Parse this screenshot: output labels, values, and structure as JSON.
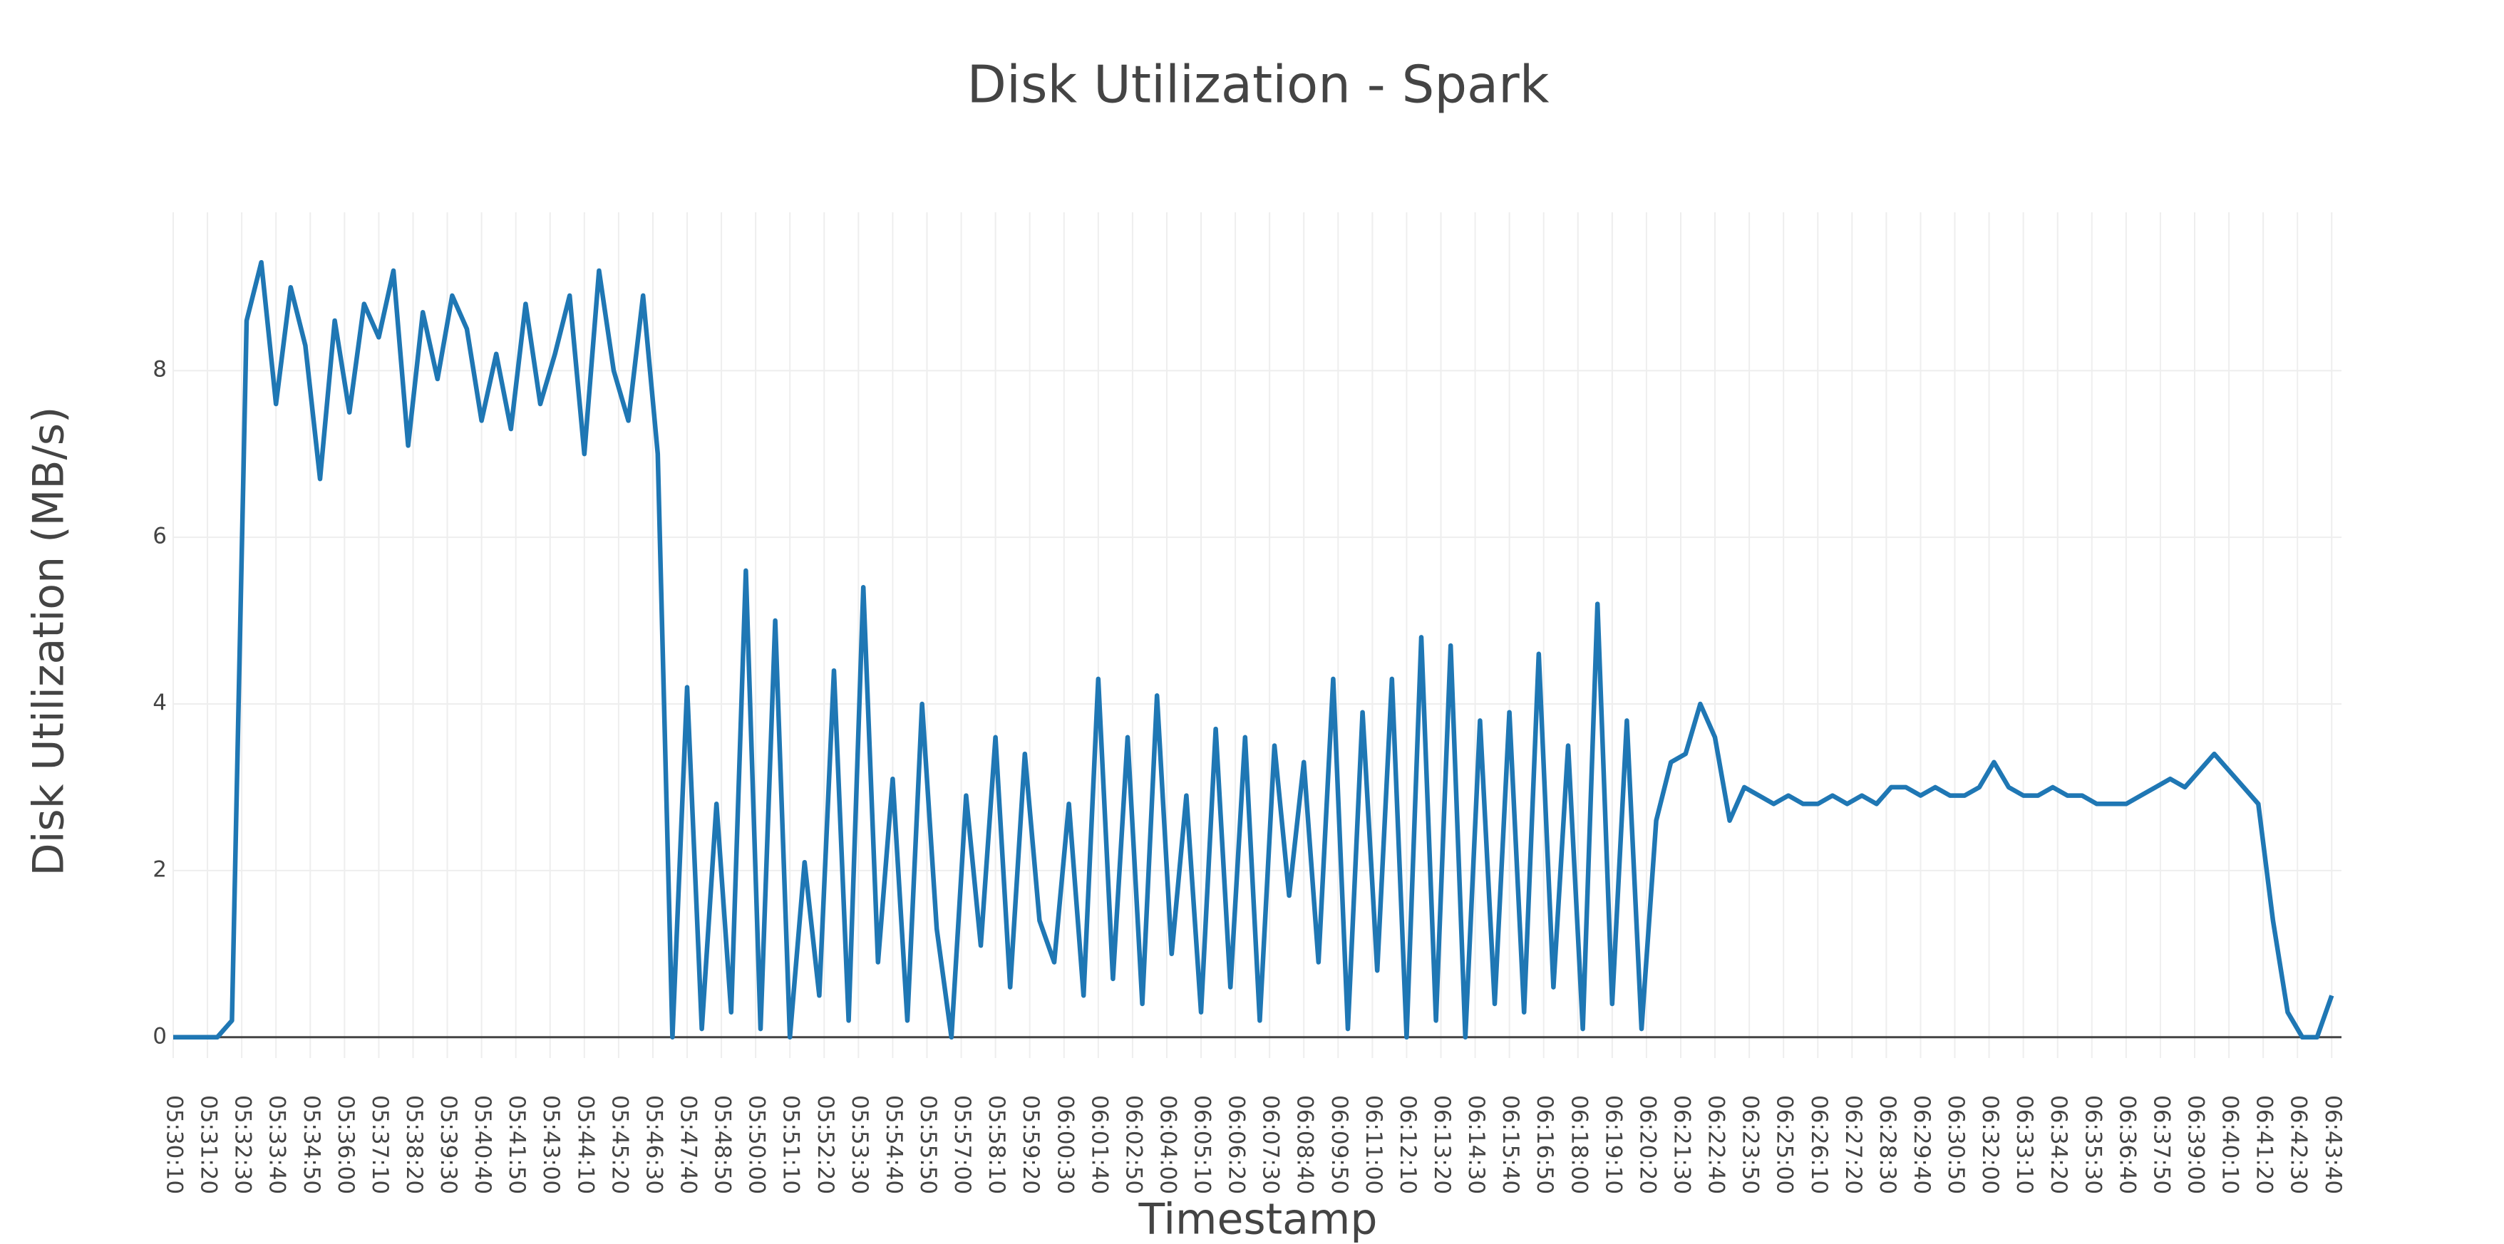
{
  "chart_data": {
    "type": "line",
    "title": "Disk Utilization - Spark",
    "x_label": "Timestamp",
    "y_label": "Disk Utilization (MB/s)",
    "color": "#1f77b4",
    "grid": true,
    "xlim": [
      "05:30:10",
      "06:44:00"
    ],
    "ylim": [
      -0.25,
      9.9
    ],
    "yticks": [
      0,
      2,
      4,
      6,
      8
    ],
    "xticks": [
      "05:30:10",
      "05:31:20",
      "05:32:30",
      "05:33:40",
      "05:34:50",
      "05:36:00",
      "05:37:10",
      "05:38:20",
      "05:39:30",
      "05:40:40",
      "05:41:50",
      "05:43:00",
      "05:44:10",
      "05:45:20",
      "05:46:30",
      "05:47:40",
      "05:48:50",
      "05:50:00",
      "05:51:10",
      "05:52:20",
      "05:53:30",
      "05:54:40",
      "05:55:50",
      "05:57:00",
      "05:58:10",
      "05:59:20",
      "06:00:30",
      "06:01:40",
      "06:02:50",
      "06:04:00",
      "06:05:10",
      "06:06:20",
      "06:07:30",
      "06:08:40",
      "06:09:50",
      "06:11:00",
      "06:12:10",
      "06:13:20",
      "06:14:30",
      "06:15:40",
      "06:16:50",
      "06:18:00",
      "06:19:10",
      "06:20:20",
      "06:21:30",
      "06:22:40",
      "06:23:50",
      "06:25:00",
      "06:26:10",
      "06:27:20",
      "06:28:30",
      "06:29:40",
      "06:30:50",
      "06:32:00",
      "06:33:10",
      "06:34:20",
      "06:35:30",
      "06:36:40",
      "06:37:50",
      "06:39:00",
      "06:40:10",
      "06:41:20",
      "06:42:30",
      "06:43:40"
    ],
    "x": [
      "05:30:10",
      "05:30:40",
      "05:31:10",
      "05:31:40",
      "05:32:10",
      "05:32:40",
      "05:33:10",
      "05:33:40",
      "05:34:10",
      "05:34:40",
      "05:35:10",
      "05:35:40",
      "05:36:10",
      "05:36:40",
      "05:37:10",
      "05:37:40",
      "05:38:10",
      "05:38:40",
      "05:39:10",
      "05:39:40",
      "05:40:10",
      "05:40:40",
      "05:41:10",
      "05:41:40",
      "05:42:10",
      "05:42:40",
      "05:43:10",
      "05:43:40",
      "05:44:10",
      "05:44:40",
      "05:45:10",
      "05:45:40",
      "05:46:10",
      "05:46:40",
      "05:47:10",
      "05:47:40",
      "05:48:10",
      "05:48:40",
      "05:49:10",
      "05:49:40",
      "05:50:10",
      "05:50:40",
      "05:51:10",
      "05:51:40",
      "05:52:10",
      "05:52:40",
      "05:53:10",
      "05:53:40",
      "05:54:10",
      "05:54:40",
      "05:55:10",
      "05:55:40",
      "05:56:10",
      "05:56:40",
      "05:57:10",
      "05:57:40",
      "05:58:10",
      "05:58:40",
      "05:59:10",
      "05:59:40",
      "06:00:10",
      "06:00:40",
      "06:01:10",
      "06:01:40",
      "06:02:10",
      "06:02:40",
      "06:03:10",
      "06:03:40",
      "06:04:10",
      "06:04:40",
      "06:05:10",
      "06:05:40",
      "06:06:10",
      "06:06:40",
      "06:07:10",
      "06:07:40",
      "06:08:10",
      "06:08:40",
      "06:09:10",
      "06:09:40",
      "06:10:10",
      "06:10:40",
      "06:11:10",
      "06:11:40",
      "06:12:10",
      "06:12:40",
      "06:13:10",
      "06:13:40",
      "06:14:10",
      "06:14:40",
      "06:15:10",
      "06:15:40",
      "06:16:10",
      "06:16:40",
      "06:17:10",
      "06:17:40",
      "06:18:10",
      "06:18:40",
      "06:19:10",
      "06:19:40",
      "06:20:10",
      "06:20:40",
      "06:21:10",
      "06:21:40",
      "06:22:10",
      "06:22:40",
      "06:23:10",
      "06:23:40",
      "06:24:10",
      "06:24:40",
      "06:25:10",
      "06:25:40",
      "06:26:10",
      "06:26:40",
      "06:27:10",
      "06:27:40",
      "06:28:10",
      "06:28:40",
      "06:29:10",
      "06:29:40",
      "06:30:10",
      "06:30:40",
      "06:31:10",
      "06:31:40",
      "06:32:10",
      "06:32:40",
      "06:33:10",
      "06:33:40",
      "06:34:10",
      "06:34:40",
      "06:35:10",
      "06:35:40",
      "06:36:10",
      "06:36:40",
      "06:37:10",
      "06:37:40",
      "06:38:10",
      "06:38:40",
      "06:39:10",
      "06:39:40",
      "06:40:10",
      "06:40:40",
      "06:41:10",
      "06:41:40",
      "06:42:10",
      "06:42:40",
      "06:43:10",
      "06:43:40"
    ],
    "values": [
      0,
      0,
      0,
      0,
      0.2,
      8.6,
      9.3,
      7.6,
      9.0,
      8.3,
      6.7,
      8.6,
      7.5,
      8.8,
      8.4,
      9.2,
      7.1,
      8.7,
      7.9,
      8.9,
      8.5,
      7.4,
      8.2,
      7.3,
      8.8,
      7.6,
      8.2,
      8.9,
      7.0,
      9.2,
      8.0,
      7.4,
      8.9,
      7.0,
      0,
      4.2,
      0.1,
      2.8,
      0.3,
      5.6,
      0.1,
      5.0,
      0,
      2.1,
      0.5,
      4.4,
      0.2,
      5.4,
      0.9,
      3.1,
      0.2,
      4.0,
      1.3,
      0,
      2.9,
      1.1,
      3.6,
      0.6,
      3.4,
      1.4,
      0.9,
      2.8,
      0.5,
      4.3,
      0.7,
      3.6,
      0.4,
      4.1,
      1.0,
      2.9,
      0.3,
      3.7,
      0.6,
      3.6,
      0.2,
      3.5,
      1.7,
      3.3,
      0.9,
      4.3,
      0.1,
      3.9,
      0.8,
      4.3,
      0,
      4.8,
      0.2,
      4.7,
      0,
      3.8,
      0.4,
      3.9,
      0.3,
      4.6,
      0.6,
      3.5,
      0.1,
      5.2,
      0.4,
      3.8,
      0.1,
      2.6,
      3.3,
      3.4,
      4.0,
      3.6,
      2.6,
      3.0,
      2.9,
      2.8,
      2.9,
      2.8,
      2.8,
      2.9,
      2.8,
      2.9,
      2.8,
      3.0,
      3.0,
      2.9,
      3.0,
      2.9,
      2.9,
      3.0,
      3.3,
      3.0,
      2.9,
      2.9,
      3.0,
      2.9,
      2.9,
      2.8,
      2.8,
      2.8,
      2.9,
      3.0,
      3.1,
      3.0,
      3.2,
      3.4,
      3.2,
      3.0,
      2.8,
      1.4,
      0.3,
      0,
      0,
      0.5
    ]
  }
}
